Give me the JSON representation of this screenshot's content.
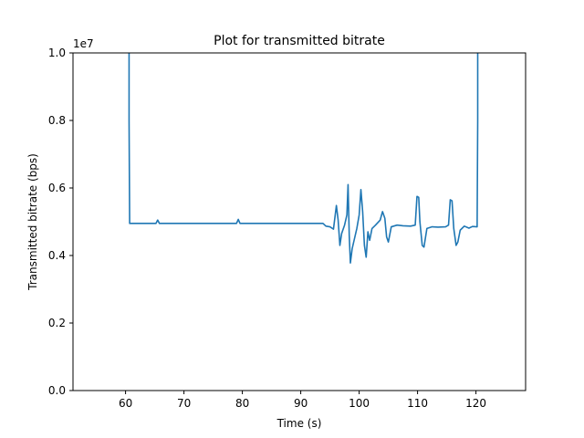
{
  "chart_data": {
    "type": "line",
    "title": "Plot for transmitted bitrate",
    "xlabel": "Time (s)",
    "ylabel": "Transmitted bitrate (bps)",
    "y_offset_label": "1e7",
    "xlim": [
      51.0,
      128.5
    ],
    "ylim": [
      0.0,
      1.0
    ],
    "x_ticks": [
      60,
      70,
      80,
      90,
      100,
      110,
      120
    ],
    "x_tick_labels": [
      "60",
      "70",
      "80",
      "90",
      "100",
      "110",
      "120"
    ],
    "y_ticks": [
      0.0,
      0.2,
      0.4,
      0.6,
      0.8,
      1.0
    ],
    "y_tick_labels": [
      "0.0",
      "0.2",
      "0.4",
      "0.6",
      "0.8",
      "1.0"
    ],
    "grid": false,
    "line_color": "#1f77b4",
    "series": [
      {
        "points": [
          [
            60.6,
            1.0
          ],
          [
            60.6,
            0.8
          ],
          [
            60.7,
            0.495
          ],
          [
            65.2,
            0.495
          ],
          [
            65.5,
            0.505
          ],
          [
            65.8,
            0.495
          ],
          [
            79.0,
            0.495
          ],
          [
            79.3,
            0.507
          ],
          [
            79.6,
            0.495
          ],
          [
            93.8,
            0.495
          ],
          [
            94.3,
            0.487
          ],
          [
            95.0,
            0.485
          ],
          [
            95.6,
            0.478
          ],
          [
            96.1,
            0.548
          ],
          [
            96.4,
            0.505
          ],
          [
            96.7,
            0.43
          ],
          [
            97.0,
            0.465
          ],
          [
            97.5,
            0.49
          ],
          [
            97.9,
            0.52
          ],
          [
            98.1,
            0.61
          ],
          [
            98.3,
            0.46
          ],
          [
            98.5,
            0.378
          ],
          [
            98.8,
            0.42
          ],
          [
            99.2,
            0.45
          ],
          [
            99.6,
            0.48
          ],
          [
            100.0,
            0.52
          ],
          [
            100.3,
            0.595
          ],
          [
            100.6,
            0.53
          ],
          [
            100.9,
            0.43
          ],
          [
            101.2,
            0.395
          ],
          [
            101.5,
            0.47
          ],
          [
            101.8,
            0.445
          ],
          [
            102.2,
            0.48
          ],
          [
            102.8,
            0.49
          ],
          [
            103.6,
            0.505
          ],
          [
            104.0,
            0.53
          ],
          [
            104.4,
            0.51
          ],
          [
            104.7,
            0.455
          ],
          [
            105.0,
            0.44
          ],
          [
            105.5,
            0.485
          ],
          [
            106.5,
            0.49
          ],
          [
            107.5,
            0.488
          ],
          [
            108.8,
            0.487
          ],
          [
            109.6,
            0.49
          ],
          [
            109.9,
            0.575
          ],
          [
            110.2,
            0.572
          ],
          [
            110.4,
            0.5
          ],
          [
            110.8,
            0.43
          ],
          [
            111.1,
            0.425
          ],
          [
            111.6,
            0.48
          ],
          [
            112.5,
            0.485
          ],
          [
            113.5,
            0.484
          ],
          [
            114.8,
            0.485
          ],
          [
            115.3,
            0.49
          ],
          [
            115.6,
            0.565
          ],
          [
            115.9,
            0.562
          ],
          [
            116.2,
            0.48
          ],
          [
            116.6,
            0.43
          ],
          [
            116.9,
            0.44
          ],
          [
            117.3,
            0.475
          ],
          [
            118.0,
            0.487
          ],
          [
            118.8,
            0.481
          ],
          [
            119.4,
            0.486
          ],
          [
            120.2,
            0.485
          ],
          [
            120.3,
            0.8
          ],
          [
            120.3,
            1.0
          ]
        ]
      }
    ]
  }
}
